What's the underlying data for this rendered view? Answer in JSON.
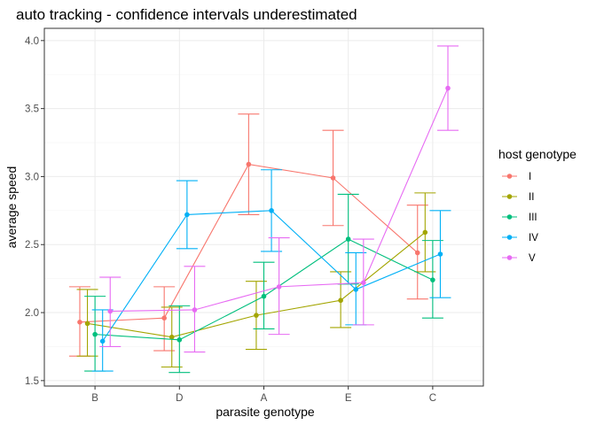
{
  "chart_data": {
    "type": "line",
    "title": "auto tracking - confidence intervals underestimated",
    "xlabel": "parasite genotype",
    "ylabel": "average speed",
    "categories": [
      "B",
      "D",
      "A",
      "E",
      "C"
    ],
    "ylim": [
      1.46,
      4.09
    ],
    "yticks": [
      "1.5",
      "2.0",
      "2.5",
      "3.0",
      "3.5",
      "4.0"
    ],
    "grid": true,
    "legend": {
      "title": "host genotype",
      "position": "right"
    },
    "series": [
      {
        "name": "I",
        "color": "#F8766D",
        "values": [
          1.93,
          1.96,
          3.09,
          2.99,
          2.44
        ],
        "lower": [
          1.68,
          1.72,
          2.72,
          2.64,
          2.1
        ],
        "upper": [
          2.19,
          2.19,
          3.46,
          3.34,
          2.79
        ]
      },
      {
        "name": "II",
        "color": "#A3A500",
        "values": [
          1.92,
          1.82,
          1.98,
          2.09,
          2.59
        ],
        "lower": [
          1.68,
          1.6,
          1.73,
          1.89,
          2.3
        ],
        "upper": [
          2.17,
          2.04,
          2.23,
          2.3,
          2.88
        ]
      },
      {
        "name": "III",
        "color": "#00BF7D",
        "values": [
          1.84,
          1.8,
          2.12,
          2.54,
          2.24
        ],
        "lower": [
          1.57,
          1.56,
          1.88,
          2.21,
          1.96
        ],
        "upper": [
          2.12,
          2.05,
          2.37,
          2.87,
          2.53
        ]
      },
      {
        "name": "IV",
        "color": "#00B0F6",
        "values": [
          1.79,
          2.72,
          2.75,
          2.17,
          2.43
        ],
        "lower": [
          1.57,
          2.47,
          2.45,
          1.91,
          2.11
        ],
        "upper": [
          2.02,
          2.97,
          3.05,
          2.44,
          2.75
        ]
      },
      {
        "name": "V",
        "color": "#E76BF3",
        "values": [
          2.01,
          2.02,
          2.19,
          2.22,
          3.65
        ],
        "lower": [
          1.75,
          1.71,
          1.84,
          1.91,
          3.34
        ],
        "upper": [
          2.26,
          2.34,
          2.55,
          2.54,
          3.96
        ]
      }
    ]
  }
}
